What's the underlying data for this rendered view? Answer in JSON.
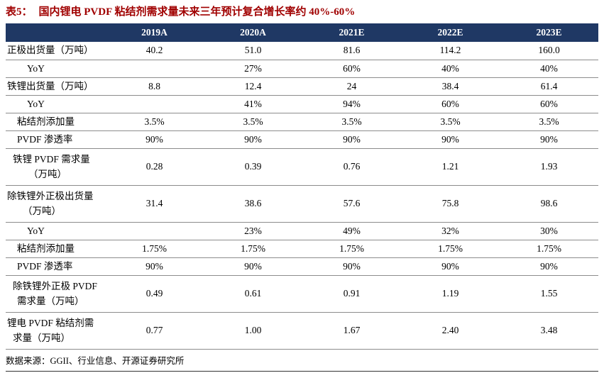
{
  "colors": {
    "accent": "#A00000",
    "header_bg": "#1F3864",
    "header_text": "#FFFFFF",
    "row_line": "#8C8C8C"
  },
  "title": {
    "label": "表5：",
    "text": "国内锂电 PVDF 粘结剂需求量未来三年预计复合增长率约 40%-60%"
  },
  "table": {
    "columns": [
      "",
      "2019A",
      "2020A",
      "2021E",
      "2022E",
      "2023E"
    ],
    "rows": [
      {
        "label": [
          [
            "正极出货量（万吨）",
            0
          ]
        ],
        "values": [
          "40.2",
          "51.0",
          "81.6",
          "114.2",
          "160.0"
        ]
      },
      {
        "label": [
          [
            "YoY",
            28
          ]
        ],
        "values": [
          "",
          "27%",
          "60%",
          "40%",
          "40%"
        ]
      },
      {
        "label": [
          [
            "铁锂出货量（万吨）",
            0
          ]
        ],
        "values": [
          "8.8",
          "12.4",
          "24",
          "38.4",
          "61.4"
        ]
      },
      {
        "label": [
          [
            "YoY",
            28
          ]
        ],
        "values": [
          "",
          "41%",
          "94%",
          "60%",
          "60%"
        ]
      },
      {
        "label": [
          [
            "粘结剂添加量",
            14
          ]
        ],
        "values": [
          "3.5%",
          "3.5%",
          "3.5%",
          "3.5%",
          "3.5%"
        ]
      },
      {
        "label": [
          [
            "PVDF 渗透率",
            14
          ]
        ],
        "values": [
          "90%",
          "90%",
          "90%",
          "90%",
          "90%"
        ]
      },
      {
        "label": [
          [
            "铁锂 PVDF 需求量",
            8
          ],
          [
            "（万吨）",
            30
          ]
        ],
        "values": [
          "0.28",
          "0.39",
          "0.76",
          "1.21",
          "1.93"
        ]
      },
      {
        "label": [
          [
            "除铁锂外正极出货量",
            0
          ],
          [
            "（万吨）",
            22
          ]
        ],
        "values": [
          "31.4",
          "38.6",
          "57.6",
          "75.8",
          "98.6"
        ]
      },
      {
        "label": [
          [
            "YoY",
            28
          ]
        ],
        "values": [
          "",
          "23%",
          "49%",
          "32%",
          "30%"
        ]
      },
      {
        "label": [
          [
            "粘结剂添加量",
            14
          ]
        ],
        "values": [
          "1.75%",
          "1.75%",
          "1.75%",
          "1.75%",
          "1.75%"
        ]
      },
      {
        "label": [
          [
            "PVDF 渗透率",
            14
          ]
        ],
        "values": [
          "90%",
          "90%",
          "90%",
          "90%",
          "90%"
        ]
      },
      {
        "label": [
          [
            "除铁锂外正极 PVDF",
            8
          ],
          [
            "需求量（万吨）",
            14
          ]
        ],
        "values": [
          "0.49",
          "0.61",
          "0.91",
          "1.19",
          "1.55"
        ]
      },
      {
        "label": [
          [
            "锂电 PVDF 粘结剂需",
            0
          ],
          [
            "求量（万吨）",
            8
          ]
        ],
        "values": [
          "0.77",
          "1.00",
          "1.67",
          "2.40",
          "3.48"
        ]
      }
    ]
  },
  "footer": {
    "source": "数据来源：GGII、行业信息、开源证券研究所"
  }
}
